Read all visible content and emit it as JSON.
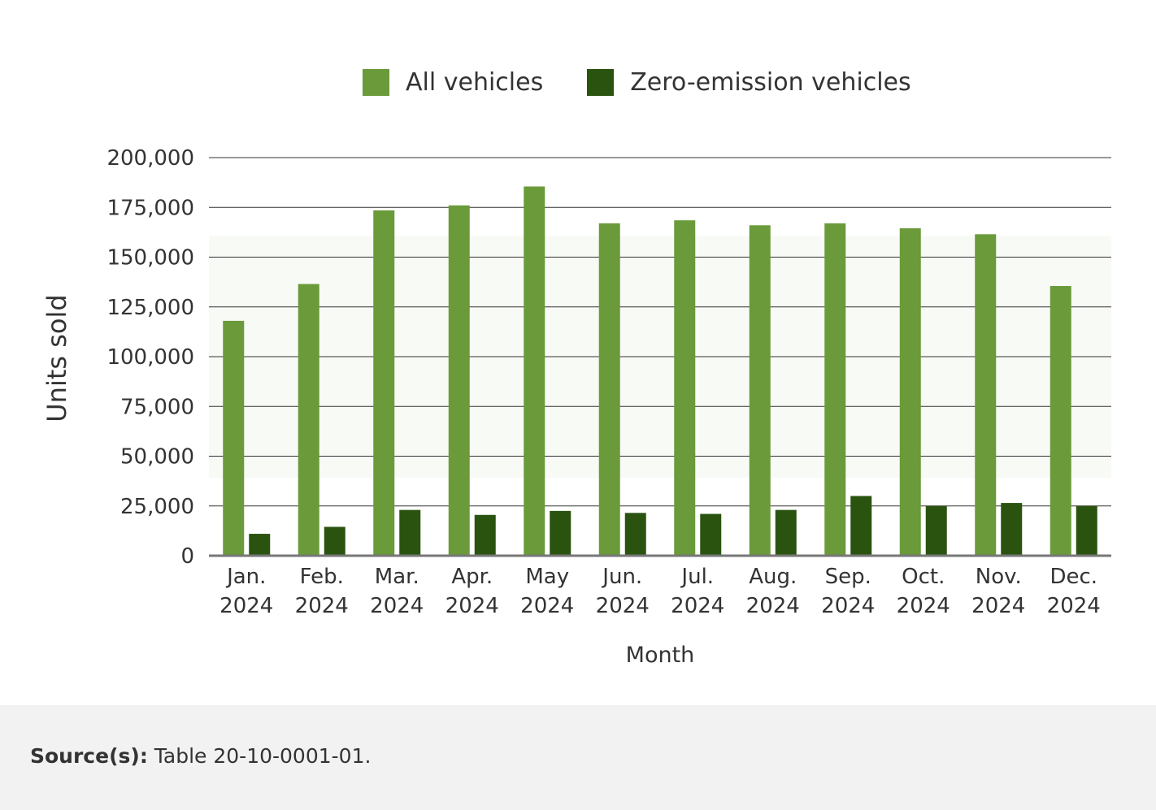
{
  "chart_data": {
    "type": "bar",
    "categories": [
      [
        "Jan.",
        "2024"
      ],
      [
        "Feb.",
        "2024"
      ],
      [
        "Mar.",
        "2024"
      ],
      [
        "Apr.",
        "2024"
      ],
      [
        "May",
        "2024"
      ],
      [
        "Jun.",
        "2024"
      ],
      [
        "Jul.",
        "2024"
      ],
      [
        "Aug.",
        "2024"
      ],
      [
        "Sep.",
        "2024"
      ],
      [
        "Oct.",
        "2024"
      ],
      [
        "Nov.",
        "2024"
      ],
      [
        "Dec.",
        "2024"
      ]
    ],
    "series": [
      {
        "name": "All vehicles",
        "color": "#6a9a3a",
        "values": [
          118000,
          136500,
          173500,
          176000,
          185500,
          167000,
          168500,
          166000,
          167000,
          164500,
          161500,
          135500
        ]
      },
      {
        "name": "Zero-emission vehicles",
        "color": "#2b5310",
        "values": [
          11000,
          14500,
          23000,
          20500,
          22500,
          21500,
          21000,
          23000,
          30000,
          25000,
          26500,
          25000
        ]
      }
    ],
    "xlabel": "Month",
    "ylabel": "Units sold",
    "ylim": [
      0,
      200000
    ],
    "yticks": [
      "0",
      "25,000",
      "50,000",
      "75,000",
      "100,000",
      "125,000",
      "150,000",
      "175,000",
      "200,000"
    ],
    "grid": true,
    "legend_position": "top-center"
  },
  "footer": {
    "source_label": "Source(s):",
    "source_text": "Table 20-10-0001-01."
  }
}
